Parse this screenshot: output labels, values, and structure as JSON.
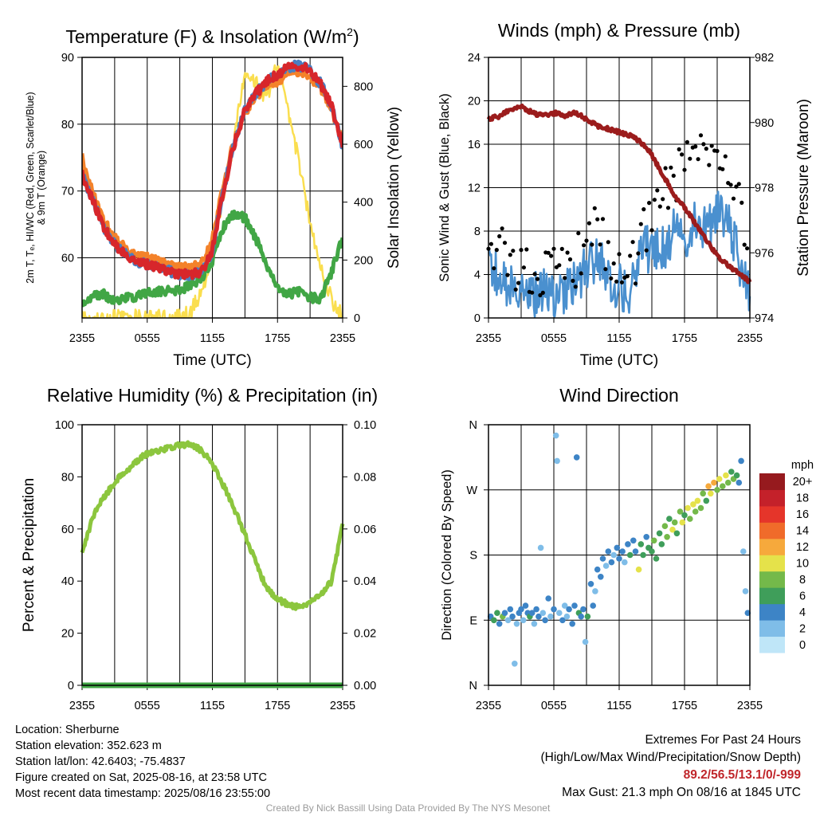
{
  "chart_data": [
    {
      "type": "line",
      "title": "Temperature (F) & Insolation (W/m",
      "title_sup": "2",
      "title_end": ")",
      "xlabel": "Time (UTC)",
      "ylabel_lines": [
        "2m T, Tₑ, HI/WC (Red, Green, Scarlet/Blue)",
        "& 9m T (Orange)"
      ],
      "ylabel_right": "Solar Insolation (Yellow)",
      "x_ticks": [
        "2355",
        "0555",
        "1155",
        "1755",
        "2355"
      ],
      "x": [
        0,
        1,
        2,
        3,
        4,
        5,
        6,
        7,
        8,
        9,
        10,
        11,
        12,
        13,
        14,
        15,
        16,
        17,
        18,
        19,
        20,
        21,
        22,
        23,
        24
      ],
      "xlim": [
        0,
        24
      ],
      "ylim": [
        51,
        90
      ],
      "y_ticks": [
        60,
        70,
        80,
        90
      ],
      "y2lim": [
        0,
        900
      ],
      "y2_ticks": [
        0,
        200,
        400,
        600,
        800
      ],
      "series": [
        {
          "key": "t2m",
          "color": "#d7262b",
          "axis": "left",
          "values": [
            72.5,
            68.5,
            64.5,
            62,
            60.5,
            59.5,
            59,
            58.5,
            58,
            57.5,
            57.5,
            57.8,
            61,
            70,
            77,
            82,
            84.5,
            86.5,
            87.5,
            88.5,
            88.8,
            88,
            86,
            82.5,
            76.5
          ]
        },
        {
          "key": "t9m",
          "color": "#f4822a",
          "axis": "left",
          "values": [
            75,
            69.5,
            65.5,
            63,
            61.5,
            60.5,
            60,
            59.5,
            59,
            58.5,
            58.5,
            59,
            62.5,
            71,
            77.5,
            81.5,
            84,
            86,
            86.5,
            87.5,
            88,
            87,
            85.5,
            82,
            77
          ]
        },
        {
          "key": "hiwc",
          "color": "#4a7fc1",
          "axis": "left",
          "values": [
            72.5,
            68.5,
            64.5,
            62,
            60.5,
            59.5,
            59,
            58.5,
            58,
            57.5,
            57.5,
            57.8,
            61,
            70,
            77,
            82,
            84.5,
            86.5,
            87.5,
            88.5,
            88.8,
            88,
            86,
            82.5,
            76.5
          ]
        },
        {
          "key": "dewpoint",
          "color": "#41a645",
          "axis": "left",
          "values": [
            53,
            54.5,
            54.5,
            53.5,
            54,
            54,
            55,
            55,
            55,
            55.2,
            56,
            57,
            59.5,
            64.5,
            66.5,
            66,
            63,
            59,
            55.5,
            54.5,
            55,
            54,
            54,
            58,
            63
          ]
        },
        {
          "key": "insolation",
          "color": "#fade4f",
          "axis": "right",
          "values": [
            0,
            0,
            0,
            0,
            0,
            0,
            0,
            0,
            0,
            0,
            20,
            90,
            220,
            420,
            620,
            860,
            820,
            750,
            880,
            720,
            530,
            330,
            180,
            60,
            5
          ]
        }
      ]
    },
    {
      "type": "line",
      "title": "Winds (mph) & Pressure (mb)",
      "xlabel": "Time (UTC)",
      "ylabel": "Sonic Wind & Gust (Blue, Black)",
      "ylabel_right": "Station Pressure (Maroon)",
      "x_ticks": [
        "2355",
        "0555",
        "1155",
        "1755",
        "2355"
      ],
      "x": [
        0,
        1,
        2,
        3,
        4,
        5,
        6,
        7,
        8,
        9,
        10,
        11,
        12,
        13,
        14,
        15,
        16,
        17,
        18,
        19,
        20,
        21,
        22,
        23,
        24
      ],
      "xlim": [
        0,
        24
      ],
      "ylim": [
        0,
        24
      ],
      "y_ticks": [
        0,
        4,
        8,
        12,
        16,
        20,
        24
      ],
      "y2lim": [
        974,
        982
      ],
      "y2_ticks": [
        974,
        976,
        978,
        980,
        982
      ],
      "series": [
        {
          "key": "wind",
          "color": "#4a90cf",
          "axis": "left",
          "values": [
            5,
            3.5,
            3,
            3,
            2,
            2.5,
            2,
            2.5,
            3,
            4.5,
            5.5,
            3.5,
            3,
            2,
            6,
            6.5,
            6.5,
            8,
            7.5,
            8.5,
            8.5,
            9.5,
            8.5,
            5.5,
            2
          ]
        },
        {
          "key": "gust",
          "color": "#000000",
          "axis": "left",
          "values": [
            7.5,
            6.5,
            5.5,
            4.5,
            4,
            4,
            4,
            4.5,
            5,
            6.5,
            8,
            5.5,
            4.5,
            4,
            7,
            10,
            12,
            13,
            14,
            16,
            16.5,
            15,
            13,
            11,
            5
          ]
        },
        {
          "key": "pressure",
          "color": "#9b1c1c",
          "axis": "right",
          "values": [
            980.1,
            980.2,
            980.4,
            980.5,
            980.3,
            980.2,
            980.3,
            980.2,
            980.3,
            980.1,
            979.9,
            979.8,
            979.7,
            979.6,
            979.4,
            979.0,
            978.4,
            977.8,
            977.4,
            976.9,
            976.4,
            975.9,
            975.6,
            975.4,
            975.1
          ]
        }
      ]
    },
    {
      "type": "line",
      "title": "Relative Humidity (%) & Precipitation (in)",
      "xlabel": "",
      "ylabel": "Percent & Precipitation",
      "x_ticks": [
        "2355",
        "0555",
        "1155",
        "1755",
        "2355"
      ],
      "x": [
        0,
        1,
        2,
        3,
        4,
        5,
        6,
        7,
        8,
        9,
        10,
        11,
        12,
        13,
        14,
        15,
        16,
        17,
        18,
        19,
        20,
        21,
        22,
        23,
        24
      ],
      "xlim": [
        0,
        24
      ],
      "ylim": [
        0,
        100
      ],
      "y_ticks": [
        0,
        20,
        40,
        60,
        80,
        100
      ],
      "y2lim": [
        0,
        0.1
      ],
      "y2_ticks": [
        "0.00",
        "0.02",
        "0.04",
        "0.06",
        "0.08",
        "0.10"
      ],
      "series": [
        {
          "key": "rh",
          "color": "#8cc63e",
          "axis": "left",
          "values": [
            50,
            65,
            72,
            78,
            82,
            86,
            89,
            90,
            91,
            92,
            93,
            90,
            85,
            77,
            68,
            58,
            47,
            37,
            33,
            31,
            30,
            32,
            35,
            40,
            62
          ]
        },
        {
          "key": "precip",
          "color": "#41a645",
          "axis": "right",
          "values": [
            0,
            0,
            0,
            0,
            0,
            0,
            0,
            0,
            0,
            0,
            0,
            0,
            0,
            0,
            0,
            0,
            0,
            0,
            0,
            0,
            0,
            0,
            0,
            0,
            0
          ]
        }
      ]
    },
    {
      "type": "scatter",
      "title": "Wind Direction",
      "ylabel": "Direction (Colored By Speed)",
      "x_ticks": [
        "2355",
        "0555",
        "1155",
        "1755",
        "2355"
      ],
      "xlim": [
        0,
        24
      ],
      "y_ticks": [
        "N",
        "E",
        "S",
        "W",
        "N"
      ],
      "ylim": [
        0,
        360
      ],
      "colorbar_title": "mph",
      "colorbar_labels": [
        "0",
        "2",
        "4",
        "6",
        "8",
        "10",
        "12",
        "14",
        "16",
        "18",
        "20+"
      ],
      "colorbar_colors": [
        "#bfe6f8",
        "#7fbde8",
        "#3d84c6",
        "#3f9e5a",
        "#74b94a",
        "#e5e24a",
        "#f6a93c",
        "#f06b2a",
        "#e5352a",
        "#c4212a",
        "#961a1e"
      ],
      "points": [
        {
          "x": 0.2,
          "dir": 95,
          "spd": 4
        },
        {
          "x": 0.5,
          "dir": 90,
          "spd": 6
        },
        {
          "x": 0.8,
          "dir": 100,
          "spd": 5
        },
        {
          "x": 1.0,
          "dir": 85,
          "spd": 3
        },
        {
          "x": 1.3,
          "dir": 95,
          "spd": 7
        },
        {
          "x": 1.5,
          "dir": 100,
          "spd": 4
        },
        {
          "x": 1.8,
          "dir": 90,
          "spd": 2
        },
        {
          "x": 2.0,
          "dir": 105,
          "spd": 4
        },
        {
          "x": 2.2,
          "dir": 95,
          "spd": 3
        },
        {
          "x": 2.4,
          "dir": 30,
          "spd": 2
        },
        {
          "x": 2.6,
          "dir": 85,
          "spd": 1
        },
        {
          "x": 2.8,
          "dir": 100,
          "spd": 4
        },
        {
          "x": 3.0,
          "dir": 105,
          "spd": 4
        },
        {
          "x": 3.2,
          "dir": 90,
          "spd": 2
        },
        {
          "x": 3.4,
          "dir": 110,
          "spd": 4
        },
        {
          "x": 3.6,
          "dir": 100,
          "spd": 3
        },
        {
          "x": 3.8,
          "dir": 95,
          "spd": 5
        },
        {
          "x": 4.0,
          "dir": 100,
          "spd": 4
        },
        {
          "x": 4.2,
          "dir": 85,
          "spd": 2
        },
        {
          "x": 4.4,
          "dir": 105,
          "spd": 3
        },
        {
          "x": 4.6,
          "dir": 95,
          "spd": 4
        },
        {
          "x": 4.8,
          "dir": 190,
          "spd": 1
        },
        {
          "x": 5.0,
          "dir": 100,
          "spd": 2
        },
        {
          "x": 5.2,
          "dir": 90,
          "spd": 4
        },
        {
          "x": 5.5,
          "dir": 120,
          "spd": 3
        },
        {
          "x": 5.7,
          "dir": 95,
          "spd": 1
        },
        {
          "x": 6.0,
          "dir": 105,
          "spd": 3
        },
        {
          "x": 6.2,
          "dir": 345,
          "spd": 2
        },
        {
          "x": 6.3,
          "dir": 310,
          "spd": 2
        },
        {
          "x": 6.5,
          "dir": 100,
          "spd": 2
        },
        {
          "x": 6.8,
          "dir": 90,
          "spd": 3
        },
        {
          "x": 7.0,
          "dir": 110,
          "spd": 2
        },
        {
          "x": 7.2,
          "dir": 95,
          "spd": 1
        },
        {
          "x": 7.4,
          "dir": 105,
          "spd": 3
        },
        {
          "x": 7.7,
          "dir": 85,
          "spd": 4
        },
        {
          "x": 7.9,
          "dir": 110,
          "spd": 4
        },
        {
          "x": 8.1,
          "dir": 315,
          "spd": 3
        },
        {
          "x": 8.3,
          "dir": 100,
          "spd": 6
        },
        {
          "x": 8.5,
          "dir": 95,
          "spd": 4
        },
        {
          "x": 8.7,
          "dir": 105,
          "spd": 3
        },
        {
          "x": 8.9,
          "dir": 60,
          "spd": 2
        },
        {
          "x": 9.1,
          "dir": 95,
          "spd": 6
        },
        {
          "x": 9.4,
          "dir": 140,
          "spd": 3
        },
        {
          "x": 9.6,
          "dir": 110,
          "spd": 4
        },
        {
          "x": 9.8,
          "dir": 130,
          "spd": 2
        },
        {
          "x": 10.0,
          "dir": 160,
          "spd": 3
        },
        {
          "x": 10.3,
          "dir": 150,
          "spd": 4
        },
        {
          "x": 10.5,
          "dir": 175,
          "spd": 3
        },
        {
          "x": 10.8,
          "dir": 165,
          "spd": 2
        },
        {
          "x": 11.0,
          "dir": 185,
          "spd": 3
        },
        {
          "x": 11.3,
          "dir": 170,
          "spd": 4
        },
        {
          "x": 11.5,
          "dir": 180,
          "spd": 2
        },
        {
          "x": 11.8,
          "dir": 190,
          "spd": 3
        },
        {
          "x": 12.0,
          "dir": 175,
          "spd": 4
        },
        {
          "x": 12.3,
          "dir": 185,
          "spd": 3
        },
        {
          "x": 12.5,
          "dir": 170,
          "spd": 2
        },
        {
          "x": 12.8,
          "dir": 195,
          "spd": 4
        },
        {
          "x": 13.0,
          "dir": 180,
          "spd": 6
        },
        {
          "x": 13.3,
          "dir": 200,
          "spd": 4
        },
        {
          "x": 13.5,
          "dir": 185,
          "spd": 3
        },
        {
          "x": 13.8,
          "dir": 160,
          "spd": 9
        },
        {
          "x": 14.0,
          "dir": 195,
          "spd": 5
        },
        {
          "x": 14.2,
          "dir": 180,
          "spd": 6
        },
        {
          "x": 14.5,
          "dir": 205,
          "spd": 4
        },
        {
          "x": 14.7,
          "dir": 190,
          "spd": 6
        },
        {
          "x": 15.0,
          "dir": 185,
          "spd": 5
        },
        {
          "x": 15.2,
          "dir": 200,
          "spd": 7
        },
        {
          "x": 15.4,
          "dir": 175,
          "spd": 6
        },
        {
          "x": 15.7,
          "dir": 210,
          "spd": 6
        },
        {
          "x": 15.9,
          "dir": 195,
          "spd": 5
        },
        {
          "x": 16.2,
          "dir": 220,
          "spd": 8
        },
        {
          "x": 16.4,
          "dir": 205,
          "spd": 7
        },
        {
          "x": 16.6,
          "dir": 230,
          "spd": 6
        },
        {
          "x": 16.9,
          "dir": 215,
          "spd": 9
        },
        {
          "x": 17.1,
          "dir": 225,
          "spd": 7
        },
        {
          "x": 17.3,
          "dir": 210,
          "spd": 5
        },
        {
          "x": 17.6,
          "dir": 240,
          "spd": 8
        },
        {
          "x": 17.8,
          "dir": 225,
          "spd": 10
        },
        {
          "x": 18.0,
          "dir": 235,
          "spd": 6
        },
        {
          "x": 18.3,
          "dir": 245,
          "spd": 9
        },
        {
          "x": 18.5,
          "dir": 230,
          "spd": 7
        },
        {
          "x": 18.8,
          "dir": 250,
          "spd": 10
        },
        {
          "x": 19.0,
          "dir": 240,
          "spd": 8
        },
        {
          "x": 19.2,
          "dir": 255,
          "spd": 9
        },
        {
          "x": 19.5,
          "dir": 245,
          "spd": 7
        },
        {
          "x": 19.7,
          "dir": 265,
          "spd": 8
        },
        {
          "x": 20.0,
          "dir": 255,
          "spd": 6
        },
        {
          "x": 20.2,
          "dir": 275,
          "spd": 11
        },
        {
          "x": 20.4,
          "dir": 265,
          "spd": 9
        },
        {
          "x": 20.7,
          "dir": 280,
          "spd": 12
        },
        {
          "x": 21.0,
          "dir": 270,
          "spd": 8
        },
        {
          "x": 21.2,
          "dir": 285,
          "spd": 10
        },
        {
          "x": 21.5,
          "dir": 275,
          "spd": 7
        },
        {
          "x": 21.8,
          "dir": 290,
          "spd": 9
        },
        {
          "x": 22.0,
          "dir": 280,
          "spd": 8
        },
        {
          "x": 22.3,
          "dir": 295,
          "spd": 6
        },
        {
          "x": 22.5,
          "dir": 285,
          "spd": 7
        },
        {
          "x": 22.8,
          "dir": 290,
          "spd": 5
        },
        {
          "x": 23.0,
          "dir": 280,
          "spd": 4
        },
        {
          "x": 23.2,
          "dir": 310,
          "spd": 3
        },
        {
          "x": 23.4,
          "dir": 185,
          "spd": 2
        },
        {
          "x": 23.6,
          "dir": 130,
          "spd": 2
        },
        {
          "x": 23.8,
          "dir": 100,
          "spd": 3
        }
      ]
    }
  ],
  "info_left": {
    "location": "Location: Sherburne",
    "elevation": "Station elevation: 352.623 m",
    "latlon": "Station lat/lon: 42.6403; -75.4837",
    "created": "Figure created on Sat, 2025-08-16, at 23:58 UTC",
    "recent": "Most recent data timestamp: 2025/08/16 23:55:00"
  },
  "info_right": {
    "heading": "Extremes For Past 24 Hours",
    "subheading": "(High/Low/Max Wind/Precipitation/Snow Depth)",
    "values": "89.2/56.5/13.1/0/-999",
    "gust": "Max Gust: 21.3 mph On 08/16 at 1845 UTC"
  },
  "credit": "Created By Nick Bassill Using Data Provided By The NYS Mesonet"
}
